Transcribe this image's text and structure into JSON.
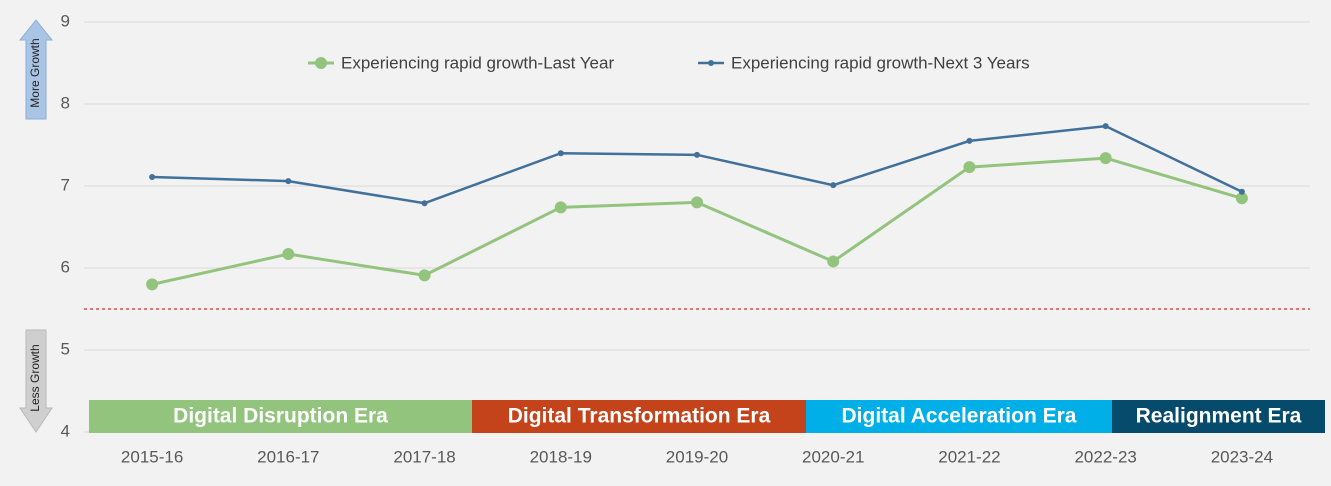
{
  "chart_data": {
    "type": "line",
    "categories": [
      "2015-16",
      "2016-17",
      "2017-18",
      "2018-19",
      "2019-20",
      "2020-21",
      "2021-22",
      "2022-23",
      "2023-24"
    ],
    "series": [
      {
        "name": "Experiencing rapid growth-Last Year",
        "color": "#93c47d",
        "values": [
          5.8,
          6.17,
          5.91,
          6.74,
          6.8,
          6.08,
          7.23,
          7.34,
          6.85
        ]
      },
      {
        "name": "Experiencing rapid growth-Next 3 Years",
        "color": "#41709b",
        "values": [
          7.11,
          7.06,
          6.79,
          7.4,
          7.38,
          7.01,
          7.55,
          7.73,
          6.93
        ]
      }
    ],
    "ylim": [
      4,
      9
    ],
    "yticks": [
      4,
      5,
      6,
      7,
      8,
      9
    ],
    "grid": true,
    "legend": "top",
    "reference_line": {
      "value": 5.5,
      "color": "#c00000"
    },
    "eras": [
      {
        "label": "Digital Disruption Era",
        "color": "#93c47d"
      },
      {
        "label": "Digital Transformation Era",
        "color": "#c5431a"
      },
      {
        "label": "Digital Acceleration Era",
        "color": "#00aee8"
      },
      {
        "label": "Realignment Era",
        "color": "#064a6c"
      }
    ],
    "axis_notes": {
      "up": "More Growth",
      "down": "Less Growth"
    }
  }
}
